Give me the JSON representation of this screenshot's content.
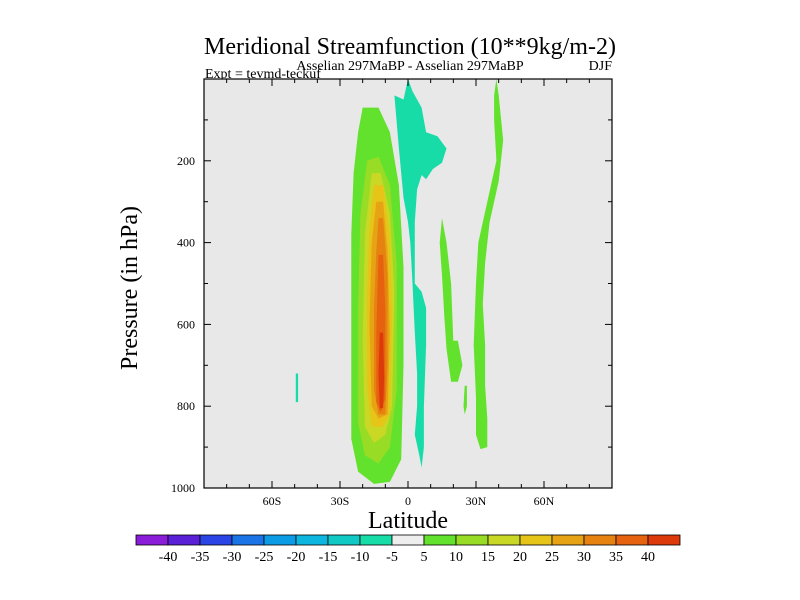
{
  "chart_data": {
    "type": "contour",
    "title": "Meridional Streamfunction (10**9kg/m-2)",
    "subtitle": "Asselian 297MaBP - Asselian 297MaBP",
    "season": "DJF",
    "experiment": "Expt = tevmd-teckuf",
    "xlabel": "Latitude",
    "ylabel": "Pressure (in hPa)",
    "xlim": [
      -90,
      90
    ],
    "ylim": [
      1000,
      0
    ],
    "xticks": [
      -60,
      -30,
      0,
      30,
      60
    ],
    "xtick_labels": [
      "60S",
      "30S",
      "0",
      "30N",
      "60N"
    ],
    "yticks": [
      200,
      400,
      600,
      800,
      1000
    ],
    "ytick_labels": [
      "200",
      "400",
      "600",
      "800",
      "1000"
    ],
    "colorbar": {
      "labels": [
        "-40",
        "-35",
        "-30",
        "-25",
        "-20",
        "-15",
        "-10",
        "-5",
        "5",
        "10",
        "15",
        "20",
        "25",
        "30",
        "35",
        "40"
      ],
      "colors": [
        "#8a1ed8",
        "#5a20d8",
        "#2a44e6",
        "#1a74e6",
        "#0c9ce6",
        "#0cb6de",
        "#10c8c4",
        "#18dca8",
        "#eeeeee",
        "#62e22c",
        "#98dc26",
        "#c8d824",
        "#e6c418",
        "#e6a414",
        "#e68210",
        "#e6620e",
        "#dc3a0a"
      ]
    },
    "regions": [
      {
        "level": "5",
        "color": "#62e22c",
        "points": [
          [
            -20,
            70
          ],
          [
            -13,
            70
          ],
          [
            -8,
            130
          ],
          [
            -4,
            260
          ],
          [
            -2,
            460
          ],
          [
            -2,
            700
          ],
          [
            -3,
            930
          ],
          [
            -8,
            985
          ],
          [
            -15,
            990
          ],
          [
            -22,
            960
          ],
          [
            -25,
            880
          ],
          [
            -25,
            640
          ],
          [
            -25,
            380
          ],
          [
            -24,
            230
          ],
          [
            -22,
            130
          ]
        ]
      },
      {
        "level": "10",
        "color": "#98dc26",
        "points": [
          [
            -18,
            200
          ],
          [
            -13,
            190
          ],
          [
            -8,
            260
          ],
          [
            -5,
            450
          ],
          [
            -5,
            760
          ],
          [
            -8,
            900
          ],
          [
            -13,
            940
          ],
          [
            -19,
            920
          ],
          [
            -22,
            840
          ],
          [
            -22,
            560
          ],
          [
            -21,
            330
          ]
        ]
      },
      {
        "level": "15",
        "color": "#c8d824",
        "points": [
          [
            -16,
            230
          ],
          [
            -12,
            230
          ],
          [
            -8,
            330
          ],
          [
            -6,
            520
          ],
          [
            -7,
            800
          ],
          [
            -10,
            870
          ],
          [
            -15,
            890
          ],
          [
            -19,
            850
          ],
          [
            -20,
            640
          ],
          [
            -19,
            380
          ]
        ]
      },
      {
        "level": "20",
        "color": "#e6c418",
        "points": [
          [
            -15,
            260
          ],
          [
            -11,
            260
          ],
          [
            -8,
            380
          ],
          [
            -7,
            580
          ],
          [
            -8,
            820
          ],
          [
            -11,
            850
          ],
          [
            -16,
            850
          ],
          [
            -18,
            760
          ],
          [
            -18,
            520
          ],
          [
            -17,
            360
          ]
        ]
      },
      {
        "level": "25",
        "color": "#e6a414",
        "points": [
          [
            -14,
            300
          ],
          [
            -11,
            300
          ],
          [
            -9,
            420
          ],
          [
            -8,
            620
          ],
          [
            -9,
            820
          ],
          [
            -13,
            830
          ],
          [
            -16,
            800
          ],
          [
            -17,
            600
          ],
          [
            -16,
            400
          ]
        ]
      },
      {
        "level": "30",
        "color": "#e68210",
        "points": [
          [
            -13,
            340
          ],
          [
            -11,
            340
          ],
          [
            -9,
            480
          ],
          [
            -9,
            700
          ],
          [
            -10,
            820
          ],
          [
            -13,
            820
          ],
          [
            -15,
            760
          ],
          [
            -15,
            560
          ],
          [
            -14,
            420
          ]
        ]
      },
      {
        "level": "35",
        "color": "#e6620e",
        "points": [
          [
            -13,
            430
          ],
          [
            -11,
            430
          ],
          [
            -10,
            560
          ],
          [
            -10,
            780
          ],
          [
            -12,
            815
          ],
          [
            -14,
            790
          ],
          [
            -14,
            620
          ]
        ]
      },
      {
        "level": "40",
        "color": "#dc3a0a",
        "points": [
          [
            -12.5,
            620
          ],
          [
            -11,
            620
          ],
          [
            -10.5,
            730
          ],
          [
            -11,
            805
          ],
          [
            -12.5,
            805
          ],
          [
            -13,
            720
          ]
        ]
      },
      {
        "level": "-5",
        "color": "#18dca8",
        "points": [
          [
            -6,
            40
          ],
          [
            -4,
            170
          ],
          [
            -2,
            290
          ],
          [
            0,
            350
          ],
          [
            1,
            400
          ],
          [
            2,
            500
          ],
          [
            3,
            620
          ],
          [
            4,
            720
          ],
          [
            4,
            800
          ],
          [
            3,
            870
          ],
          [
            5,
            920
          ],
          [
            6,
            950
          ],
          [
            7,
            900
          ],
          [
            7,
            800
          ],
          [
            8,
            650
          ],
          [
            8,
            560
          ],
          [
            6,
            520
          ],
          [
            3,
            500
          ],
          [
            3,
            350
          ],
          [
            4,
            270
          ],
          [
            6,
            235
          ],
          [
            8,
            245
          ],
          [
            11,
            220
          ],
          [
            15,
            205
          ],
          [
            17,
            170
          ],
          [
            13,
            140
          ],
          [
            8,
            130
          ],
          [
            6,
            70
          ],
          [
            2,
            30
          ],
          [
            0,
            0
          ],
          [
            -2,
            50
          ]
        ]
      },
      {
        "level": "-5",
        "color": "#18dca8",
        "points": [
          [
            -49.5,
            720
          ],
          [
            -48.5,
            720
          ],
          [
            -48.5,
            790
          ],
          [
            -49.5,
            790
          ]
        ]
      },
      {
        "level": "5",
        "color": "#62e22c",
        "points": [
          [
            15,
            340
          ],
          [
            17,
            400
          ],
          [
            19,
            500
          ],
          [
            20,
            640
          ],
          [
            22,
            640
          ],
          [
            24,
            700
          ],
          [
            22,
            740
          ],
          [
            19,
            740
          ],
          [
            17,
            660
          ],
          [
            16,
            580
          ],
          [
            15,
            480
          ],
          [
            14,
            400
          ]
        ]
      },
      {
        "level": "5",
        "color": "#62e22c",
        "points": [
          [
            39,
            0
          ],
          [
            40,
            40
          ],
          [
            42,
            150
          ],
          [
            40,
            250
          ],
          [
            36,
            350
          ],
          [
            34,
            450
          ],
          [
            33,
            550
          ],
          [
            34,
            650
          ],
          [
            34,
            750
          ],
          [
            35,
            830
          ],
          [
            35,
            900
          ],
          [
            32,
            905
          ],
          [
            30,
            870
          ],
          [
            30,
            780
          ],
          [
            29,
            650
          ],
          [
            30,
            500
          ],
          [
            31,
            400
          ],
          [
            35,
            300
          ],
          [
            39,
            200
          ],
          [
            38,
            100
          ],
          [
            38,
            40
          ]
        ]
      },
      {
        "level": "5",
        "color": "#62e22c",
        "points": [
          [
            25,
            750
          ],
          [
            26,
            750
          ],
          [
            26,
            800
          ],
          [
            25,
            820
          ],
          [
            24.5,
            800
          ]
        ]
      }
    ]
  }
}
